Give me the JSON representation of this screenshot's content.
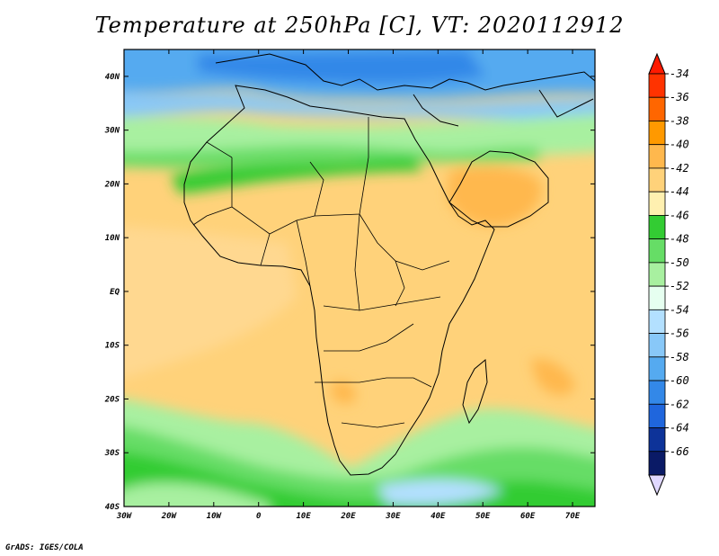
{
  "title": "Temperature at 250hPa [C], VT: 2020112912",
  "credit": "GrADS: IGES/COLA",
  "map": {
    "projection": "lat-lon",
    "lon_range": [
      -30,
      75
    ],
    "lat_range": [
      -40,
      45
    ],
    "lon_ticks": [
      "30W",
      "20W",
      "10W",
      "0",
      "10E",
      "20E",
      "30E",
      "40E",
      "50E",
      "60E",
      "70E"
    ],
    "lat_ticks": [
      "40N",
      "30N",
      "20N",
      "10N",
      "EQ",
      "10S",
      "20S",
      "30S",
      "40S"
    ]
  },
  "colorbar": {
    "labels": [
      "-34",
      "-36",
      "-38",
      "-40",
      "-42",
      "-44",
      "-46",
      "-48",
      "-50",
      "-52",
      "-54",
      "-56",
      "-58",
      "-60",
      "-62",
      "-64",
      "-66"
    ],
    "colors": [
      "#ff3300",
      "#ff6600",
      "#ff9900",
      "#ffb84d",
      "#ffd27a",
      "#fff0b0",
      "#33cc33",
      "#66dd66",
      "#a8f0a0",
      "#e6fff0",
      "#b3e0ff",
      "#88c8f8",
      "#55aaf0",
      "#3388e8",
      "#1f66dd",
      "#0d3399",
      "#0a1a66"
    ],
    "top_arrow_color": "#ff1a00",
    "bottom_arrow_color": "#e0d8ff"
  }
}
